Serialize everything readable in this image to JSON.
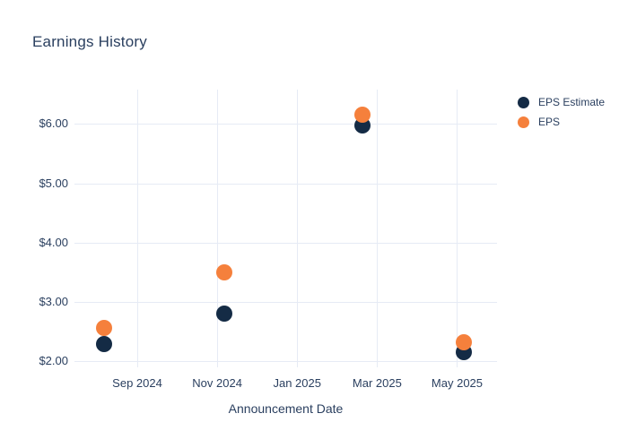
{
  "title": "Earnings History",
  "x_axis_title": "Announcement Date",
  "colors": {
    "eps_estimate": "#142b45",
    "eps": "#f5803c",
    "text": "#2a3f5f",
    "grid": "#e6ebf5",
    "background": "#ffffff"
  },
  "legend": {
    "items": [
      {
        "label": "EPS Estimate",
        "color": "#142b45"
      },
      {
        "label": "EPS",
        "color": "#f5803c"
      }
    ]
  },
  "chart_data": {
    "type": "scatter",
    "title": "Earnings History",
    "xlabel": "Announcement Date",
    "ylabel": "",
    "grid": true,
    "legend_position": "right",
    "marker_size_px": 18,
    "x_dates": [
      "2024-08-06",
      "2024-11-06",
      "2025-02-19",
      "2025-05-06"
    ],
    "series": [
      {
        "name": "EPS Estimate",
        "color": "#142b45",
        "values": [
          2.29,
          2.8,
          5.97,
          2.15
        ]
      },
      {
        "name": "EPS",
        "color": "#f5803c",
        "values": [
          2.56,
          3.5,
          6.16,
          2.32
        ]
      }
    ],
    "x_ticks": [
      {
        "label": "Sep 2024",
        "date": "2024-09-01"
      },
      {
        "label": "Nov 2024",
        "date": "2024-11-01"
      },
      {
        "label": "Jan 2025",
        "date": "2025-01-01"
      },
      {
        "label": "Mar 2025",
        "date": "2025-03-01"
      },
      {
        "label": "May 2025",
        "date": "2025-05-01"
      }
    ],
    "y_ticks": [
      {
        "label": "$6.00",
        "value": 6
      },
      {
        "label": "$5.00",
        "value": 5
      },
      {
        "label": "$4.00",
        "value": 4
      },
      {
        "label": "$3.00",
        "value": 3
      },
      {
        "label": "$2.00",
        "value": 2
      }
    ],
    "ylim": [
      1.9,
      6.57
    ]
  }
}
